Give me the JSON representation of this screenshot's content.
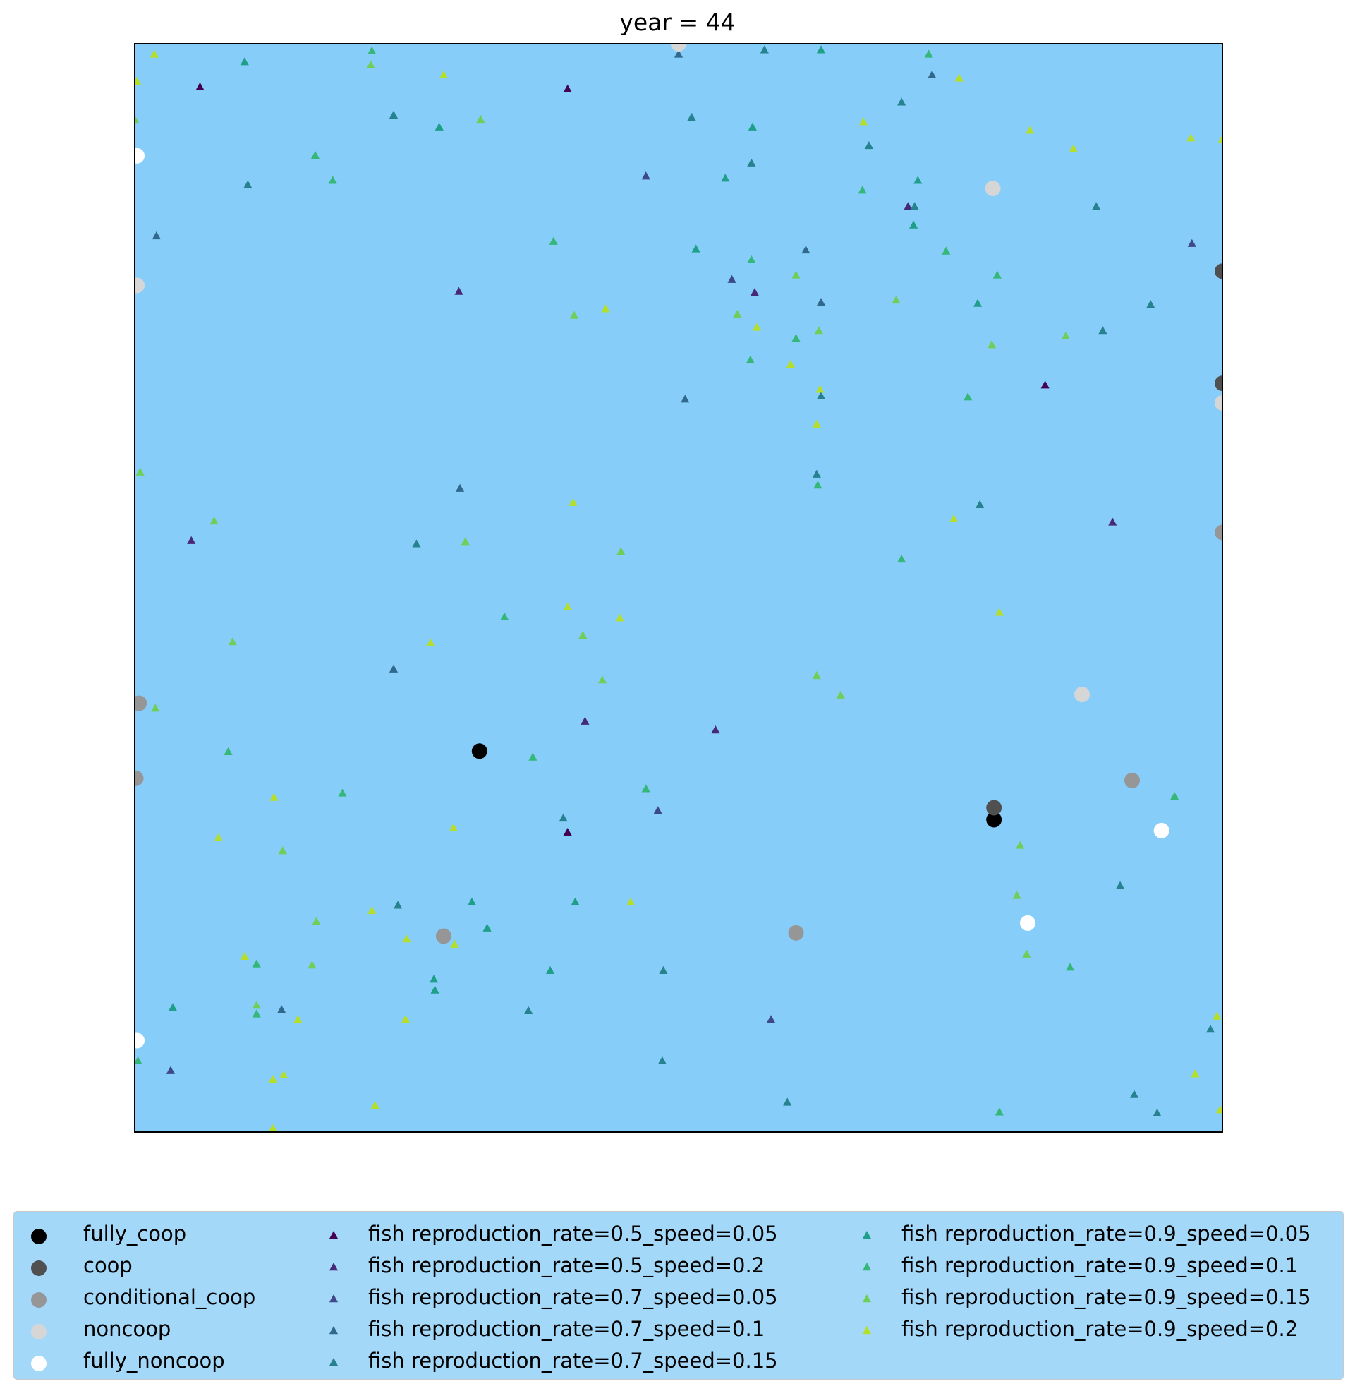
{
  "chart_data": {
    "type": "scatter",
    "title": "year = 44",
    "xlabel": "",
    "ylabel": "",
    "xlim": [
      0,
      100
    ],
    "ylim": [
      0,
      100
    ],
    "axis_ticks": false,
    "grid": false,
    "background_color": "#87cdf9",
    "legend_placement": "bottom",
    "series": [
      {
        "name": "fully_coop",
        "marker": "circle",
        "color": "#000000",
        "points": [
          [
            31.7,
            35.0
          ],
          [
            79.0,
            28.7
          ]
        ]
      },
      {
        "name": "coop",
        "marker": "circle",
        "color": "#505050",
        "points": [
          [
            79.0,
            29.8
          ],
          [
            100.0,
            79.1
          ],
          [
            100.0,
            68.8
          ]
        ]
      },
      {
        "name": "conditional_coop",
        "marker": "circle",
        "color": "#969696",
        "points": [
          [
            0.4,
            39.4
          ],
          [
            0.1,
            32.5
          ],
          [
            28.4,
            18.0
          ],
          [
            60.8,
            18.3
          ],
          [
            91.7,
            32.3
          ],
          [
            100.0,
            55.1
          ]
        ]
      },
      {
        "name": "noncoop",
        "marker": "circle",
        "color": "#d6d6d6",
        "points": [
          [
            50.0,
            100.0
          ],
          [
            78.9,
            86.7
          ],
          [
            0.2,
            77.8
          ],
          [
            100.0,
            67.0
          ],
          [
            87.1,
            40.2
          ]
        ]
      },
      {
        "name": "fully_noncoop",
        "marker": "circle",
        "color": "#ffffff",
        "points": [
          [
            0.2,
            89.7
          ],
          [
            94.4,
            27.7
          ],
          [
            82.1,
            19.2
          ],
          [
            0.2,
            8.4
          ]
        ]
      },
      {
        "name": "fish reproduction_rate=0.5_speed=0.05",
        "marker": "triangle",
        "color": "#440154",
        "points": [
          [
            6.0,
            96.0
          ],
          [
            39.8,
            95.8
          ],
          [
            83.7,
            68.6
          ],
          [
            39.8,
            27.5
          ]
        ]
      },
      {
        "name": "fish reproduction_rate=0.5_speed=0.2",
        "marker": "triangle",
        "color": "#482878",
        "points": [
          [
            71.1,
            85.0
          ],
          [
            29.8,
            77.2
          ],
          [
            57.0,
            77.1
          ],
          [
            5.2,
            54.3
          ],
          [
            89.9,
            56.0
          ],
          [
            41.4,
            37.7
          ],
          [
            53.4,
            36.9
          ]
        ]
      },
      {
        "name": "fish reproduction_rate=0.7_speed=0.05",
        "marker": "triangle",
        "color": "#3e4989",
        "points": [
          [
            47.0,
            87.8
          ],
          [
            54.9,
            78.3
          ],
          [
            97.2,
            81.6
          ],
          [
            3.3,
            5.6
          ],
          [
            58.5,
            10.3
          ],
          [
            48.1,
            29.5
          ]
        ]
      },
      {
        "name": "fish reproduction_rate=0.7_speed=0.1",
        "marker": "triangle",
        "color": "#31688e",
        "points": [
          [
            50.0,
            99.0
          ],
          [
            100.6,
            98.3
          ],
          [
            73.3,
            97.1
          ],
          [
            2.0,
            82.3
          ],
          [
            61.7,
            81.0
          ],
          [
            63.1,
            76.2
          ],
          [
            50.6,
            67.3
          ],
          [
            29.9,
            59.1
          ],
          [
            23.8,
            42.5
          ],
          [
            13.5,
            11.2
          ]
        ]
      },
      {
        "name": "fish reproduction_rate=0.7_speed=0.15",
        "marker": "triangle",
        "color": "#26828e",
        "points": [
          [
            57.9,
            99.4
          ],
          [
            23.8,
            93.4
          ],
          [
            51.2,
            93.2
          ],
          [
            70.5,
            94.6
          ],
          [
            10.4,
            87.0
          ],
          [
            56.7,
            89.0
          ],
          [
            67.5,
            90.6
          ],
          [
            71.7,
            85.0
          ],
          [
            89.0,
            73.6
          ],
          [
            93.4,
            76.0
          ],
          [
            63.1,
            67.6
          ],
          [
            25.9,
            54.0
          ],
          [
            62.7,
            60.4
          ],
          [
            88.4,
            85.0
          ],
          [
            77.7,
            57.6
          ],
          [
            24.2,
            20.8
          ],
          [
            39.4,
            28.8
          ],
          [
            48.6,
            14.8
          ],
          [
            90.6,
            22.6
          ],
          [
            91.9,
            3.4
          ],
          [
            48.5,
            6.5
          ],
          [
            36.2,
            11.1
          ],
          [
            98.9,
            9.4
          ],
          [
            94.0,
            1.7
          ],
          [
            60.0,
            2.7
          ]
        ]
      },
      {
        "name": "fish reproduction_rate=0.9_speed=0.05",
        "marker": "triangle",
        "color": "#1f9e89",
        "points": [
          [
            63.1,
            99.4
          ],
          [
            10.1,
            98.3
          ],
          [
            28.0,
            92.3
          ],
          [
            54.3,
            87.6
          ],
          [
            56.8,
            92.3
          ],
          [
            72.0,
            87.4
          ],
          [
            51.6,
            81.1
          ],
          [
            71.6,
            83.3
          ],
          [
            77.5,
            76.1
          ],
          [
            3.5,
            11.4
          ],
          [
            27.6,
            13.0
          ],
          [
            31.0,
            21.1
          ],
          [
            38.2,
            14.8
          ],
          [
            40.5,
            21.1
          ],
          [
            32.4,
            18.7
          ],
          [
            27.5,
            14.0
          ]
        ]
      },
      {
        "name": "fish reproduction_rate=0.9_speed=0.1",
        "marker": "triangle",
        "color": "#35b779",
        "points": [
          [
            21.8,
            99.3
          ],
          [
            73.0,
            99.0
          ],
          [
            16.6,
            89.7
          ],
          [
            18.2,
            87.4
          ],
          [
            79.1,
            86.9
          ],
          [
            66.9,
            86.5
          ],
          [
            38.5,
            81.8
          ],
          [
            56.7,
            80.1
          ],
          [
            74.6,
            80.9
          ],
          [
            79.3,
            78.7
          ],
          [
            0.2,
            78.1
          ],
          [
            60.8,
            72.9
          ],
          [
            56.6,
            70.9
          ],
          [
            76.6,
            67.5
          ],
          [
            62.8,
            59.4
          ],
          [
            70.5,
            52.6
          ],
          [
            8.6,
            34.9
          ],
          [
            19.1,
            31.1
          ],
          [
            11.2,
            15.4
          ],
          [
            0.3,
            6.5
          ],
          [
            11.2,
            10.8
          ],
          [
            47.0,
            31.5
          ],
          [
            36.6,
            34.4
          ],
          [
            86.0,
            15.1
          ],
          [
            95.6,
            30.8
          ],
          [
            79.5,
            1.8
          ],
          [
            34.0,
            47.3
          ]
        ]
      },
      {
        "name": "fish reproduction_rate=0.9_speed=0.15",
        "marker": "triangle",
        "color": "#6ece58",
        "points": [
          [
            0.0,
            93.0
          ],
          [
            21.7,
            98.0
          ],
          [
            31.8,
            93.0
          ],
          [
            40.4,
            75.0
          ],
          [
            55.4,
            75.1
          ],
          [
            60.8,
            78.7
          ],
          [
            62.9,
            73.6
          ],
          [
            70.0,
            76.4
          ],
          [
            78.8,
            72.3
          ],
          [
            30.4,
            54.2
          ],
          [
            7.3,
            56.1
          ],
          [
            0.5,
            60.6
          ],
          [
            44.7,
            53.3
          ],
          [
            9.0,
            45.0
          ],
          [
            43.0,
            41.5
          ],
          [
            62.7,
            41.9
          ],
          [
            64.9,
            40.1
          ],
          [
            41.2,
            45.6
          ],
          [
            85.6,
            73.1
          ],
          [
            81.1,
            21.7
          ],
          [
            16.7,
            19.3
          ],
          [
            13.6,
            25.8
          ],
          [
            16.3,
            15.3
          ],
          [
            11.2,
            11.6
          ],
          [
            82.0,
            16.3
          ],
          [
            1.9,
            38.9
          ],
          [
            81.4,
            26.3
          ]
        ]
      },
      {
        "name": "fish reproduction_rate=0.9_speed=0.2",
        "marker": "triangle",
        "color": "#b5de2b",
        "points": [
          [
            1.8,
            99.0
          ],
          [
            0.2,
            96.5
          ],
          [
            28.4,
            97.1
          ],
          [
            67.0,
            92.8
          ],
          [
            75.8,
            96.8
          ],
          [
            82.3,
            92.0
          ],
          [
            86.3,
            90.3
          ],
          [
            97.1,
            91.3
          ],
          [
            100.0,
            91.2
          ],
          [
            43.3,
            75.6
          ],
          [
            57.2,
            73.9
          ],
          [
            60.3,
            70.5
          ],
          [
            63.0,
            68.2
          ],
          [
            62.7,
            65.0
          ],
          [
            75.3,
            56.3
          ],
          [
            40.3,
            57.8
          ],
          [
            39.8,
            48.2
          ],
          [
            44.6,
            47.2
          ],
          [
            27.2,
            44.9
          ],
          [
            79.5,
            47.7
          ],
          [
            29.3,
            27.9
          ],
          [
            12.8,
            30.7
          ],
          [
            7.7,
            27.0
          ],
          [
            10.1,
            16.1
          ],
          [
            21.8,
            20.3
          ],
          [
            45.6,
            21.1
          ],
          [
            25.0,
            17.7
          ],
          [
            29.4,
            17.2
          ],
          [
            24.9,
            10.3
          ],
          [
            15.0,
            10.3
          ],
          [
            13.7,
            5.2
          ],
          [
            12.7,
            4.8
          ],
          [
            22.1,
            2.4
          ],
          [
            12.7,
            0.3
          ],
          [
            97.5,
            5.3
          ],
          [
            99.8,
            2.0
          ],
          [
            99.5,
            10.6
          ]
        ]
      }
    ]
  }
}
